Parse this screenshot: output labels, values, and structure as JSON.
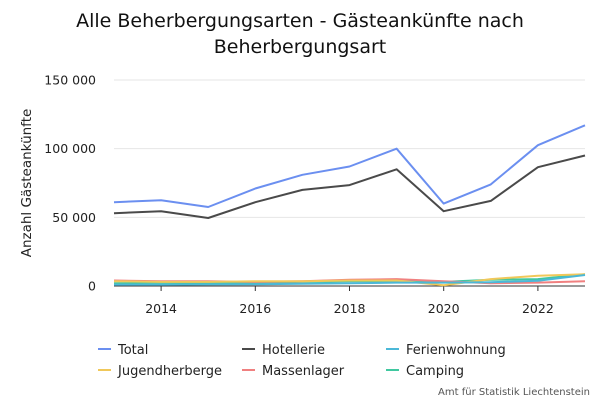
{
  "chart_data": {
    "type": "line",
    "title_line1": "Alle Beherbergungsarten - Gästeankünfte nach",
    "title_line2": "Beherbergungsart",
    "ylabel": "Anzahl Gästeankünfte",
    "xlabel": "",
    "x": [
      2013,
      2014,
      2015,
      2016,
      2017,
      2018,
      2019,
      2020,
      2021,
      2022,
      2023
    ],
    "xlim": [
      2013,
      2023
    ],
    "ylim": [
      0,
      150000
    ],
    "x_ticks": [
      {
        "value": 2014,
        "label": "2014"
      },
      {
        "value": 2016,
        "label": "2016"
      },
      {
        "value": 2018,
        "label": "2018"
      },
      {
        "value": 2020,
        "label": "2020"
      },
      {
        "value": 2022,
        "label": "2022"
      }
    ],
    "y_ticks": [
      {
        "value": 0,
        "label": "0"
      },
      {
        "value": 50000,
        "label": "50 000"
      },
      {
        "value": 100000,
        "label": "100 000"
      },
      {
        "value": 150000,
        "label": "150 000"
      }
    ],
    "grid": true,
    "legend_position": "bottom",
    "series": [
      {
        "name": "Total",
        "color": "#6b8ff0",
        "values": [
          61000,
          62500,
          57500,
          71000,
          81000,
          87000,
          100000,
          60000,
          74000,
          102500,
          117000
        ]
      },
      {
        "name": "Hotellerie",
        "color": "#4a4a4a",
        "values": [
          53000,
          54500,
          49500,
          61000,
          70000,
          73500,
          85000,
          54500,
          62000,
          86500,
          95000
        ]
      },
      {
        "name": "Ferienwohnung",
        "color": "#4bb8d8",
        "values": [
          1000,
          1000,
          1200,
          1300,
          1600,
          2000,
          2500,
          2500,
          2800,
          3800,
          8000
        ]
      },
      {
        "name": "Jugendherberge",
        "color": "#f0c85a",
        "values": [
          3500,
          3000,
          3000,
          3500,
          3500,
          4000,
          4000,
          500,
          5000,
          7500,
          8500
        ]
      },
      {
        "name": "Massenlager",
        "color": "#f08080",
        "values": [
          4000,
          3500,
          3500,
          3000,
          3500,
          4500,
          5000,
          3500,
          2000,
          2500,
          3500
        ]
      },
      {
        "name": "Camping",
        "color": "#40c8a0",
        "values": [
          2000,
          2500,
          2000,
          2500,
          3000,
          3500,
          3500,
          3000,
          4500,
          5000,
          8500
        ]
      }
    ],
    "credit": "Amt für Statistik Liechtenstein"
  }
}
